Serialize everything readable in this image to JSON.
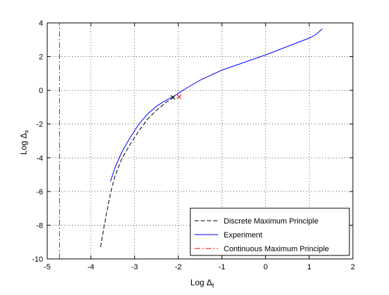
{
  "chart_data": {
    "type": "line",
    "title": "",
    "xlabel": "Log Δ",
    "xlabel_sub": "t",
    "ylabel": "Log Δ",
    "ylabel_sub": "x",
    "xlim": [
      -5,
      2
    ],
    "ylim": [
      -10,
      4
    ],
    "xticks": [
      -5,
      -4,
      -3,
      -2,
      -1,
      0,
      1,
      2
    ],
    "yticks": [
      -10,
      -8,
      -6,
      -4,
      -2,
      0,
      2,
      4
    ],
    "grid": true,
    "grid_style": "dotted",
    "legend_position": "bottom-right",
    "series": [
      {
        "name": "Discrete Maximum Principle",
        "color": "#000000",
        "dash": "dashed",
        "x": [
          -3.78,
          -3.72,
          -3.65,
          -3.55,
          -3.45,
          -3.3,
          -3.1,
          -2.9,
          -2.7,
          -2.5,
          -2.3,
          -2.1
        ],
        "y": [
          -9.3,
          -8.4,
          -7.4,
          -6.1,
          -5.1,
          -4.1,
          -3.2,
          -2.4,
          -1.7,
          -1.2,
          -0.75,
          -0.4
        ]
      },
      {
        "name": "Experiment",
        "color": "#0000ff",
        "dash": "solid",
        "x": [
          -3.55,
          -3.45,
          -3.3,
          -3.1,
          -2.9,
          -2.7,
          -2.5,
          -2.3,
          -2.1,
          -1.8,
          -1.5,
          -1.0,
          -0.5,
          0.0,
          0.5,
          1.0,
          1.15,
          1.3
        ],
        "y": [
          -5.4,
          -4.6,
          -3.7,
          -2.8,
          -2.0,
          -1.4,
          -0.95,
          -0.62,
          -0.35,
          0.15,
          0.6,
          1.2,
          1.65,
          2.1,
          2.6,
          3.1,
          3.3,
          3.65
        ]
      },
      {
        "name": "Continuous Maximum Principle",
        "color": "#ff0000",
        "dash": "dashdot",
        "x": [
          -4.72,
          -4.72
        ],
        "y": [
          -10,
          4
        ]
      }
    ],
    "markers": [
      {
        "x": -2.12,
        "y": -0.42,
        "symbol": "x",
        "color": "#000000"
      },
      {
        "x": -1.98,
        "y": -0.38,
        "symbol": "x",
        "color": "#ff0000"
      }
    ]
  }
}
